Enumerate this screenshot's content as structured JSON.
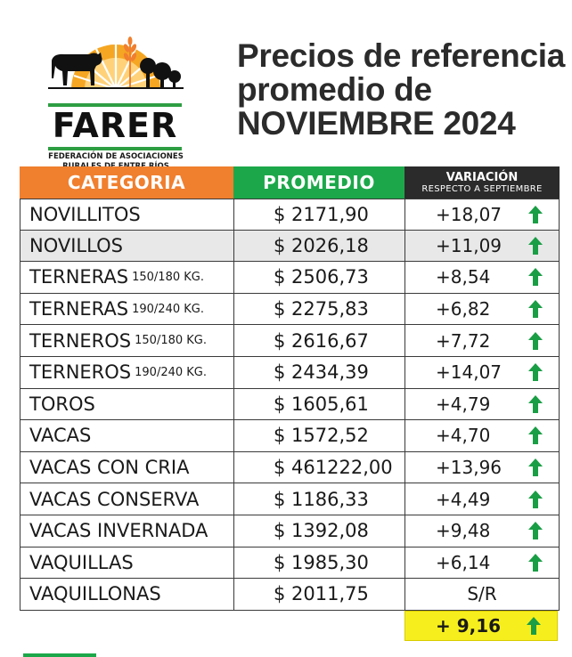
{
  "logo": {
    "name": "FARER",
    "subtitle_line1": "FEDERACIÓN DE ASOCIACIONES",
    "subtitle_line2": "RURALES DE ENTRE RÍOS"
  },
  "title": {
    "line1": "Precios de referencia",
    "line2": "promedio de",
    "line3": "NOVIEMBRE 2024"
  },
  "table": {
    "headers": {
      "category": "CATEGORIA",
      "average": "PROMEDIO",
      "variation": "VARIACIÓN",
      "variation_sub": "RESPECTO A SEPTIEMBRE"
    },
    "rows": [
      {
        "category": "NOVILLITOS",
        "size": "",
        "average": "$ 2171,90",
        "variation": "+18,07",
        "trend": "up"
      },
      {
        "category": "NOVILLOS",
        "size": "",
        "average": "$ 2026,18",
        "variation": "+11,09",
        "trend": "up"
      },
      {
        "category": "TERNERAS",
        "size": "150/180 KG.",
        "average": "$ 2506,73",
        "variation": "+8,54",
        "trend": "up"
      },
      {
        "category": "TERNERAS",
        "size": "190/240 KG.",
        "average": "$ 2275,83",
        "variation": "+6,82",
        "trend": "up"
      },
      {
        "category": "TERNEROS",
        "size": "150/180 KG.",
        "average": "$ 2616,67",
        "variation": "+7,72",
        "trend": "up"
      },
      {
        "category": "TERNEROS",
        "size": "190/240 KG.",
        "average": "$ 2434,39",
        "variation": "+14,07",
        "trend": "up"
      },
      {
        "category": "TOROS",
        "size": "",
        "average": "$ 1605,61",
        "variation": "+4,79",
        "trend": "up"
      },
      {
        "category": "VACAS",
        "size": "",
        "average": "$ 1572,52",
        "variation": "+4,70",
        "trend": "up"
      },
      {
        "category": "VACAS CON CRIA",
        "size": "",
        "average": "$ 461222,00",
        "variation": "+13,96",
        "trend": "up"
      },
      {
        "category": "VACAS CONSERVA",
        "size": "",
        "average": "$ 1186,33",
        "variation": "+4,49",
        "trend": "up"
      },
      {
        "category": "VACAS INVERNADA",
        "size": "",
        "average": "$ 1392,08",
        "variation": "+9,48",
        "trend": "up"
      },
      {
        "category": "VAQUILLAS",
        "size": "",
        "average": "$ 1985,30",
        "variation": "+6,14",
        "trend": "up"
      },
      {
        "category": "VAQUILLONAS",
        "size": "",
        "average": "$ 2011,75",
        "variation": "S/R",
        "trend": "none"
      }
    ],
    "total_variation": "+ 9,16"
  },
  "colors": {
    "orange": "#f07f2e",
    "green": "#1ca84a",
    "dark": "#2b2b2b",
    "yellow": "#f7ef1d",
    "arrow_green": "#1a9e45"
  },
  "icons": [
    "cow-icon",
    "sun-icon",
    "wheat-icon",
    "trees-icon",
    "up-arrow-icon"
  ]
}
